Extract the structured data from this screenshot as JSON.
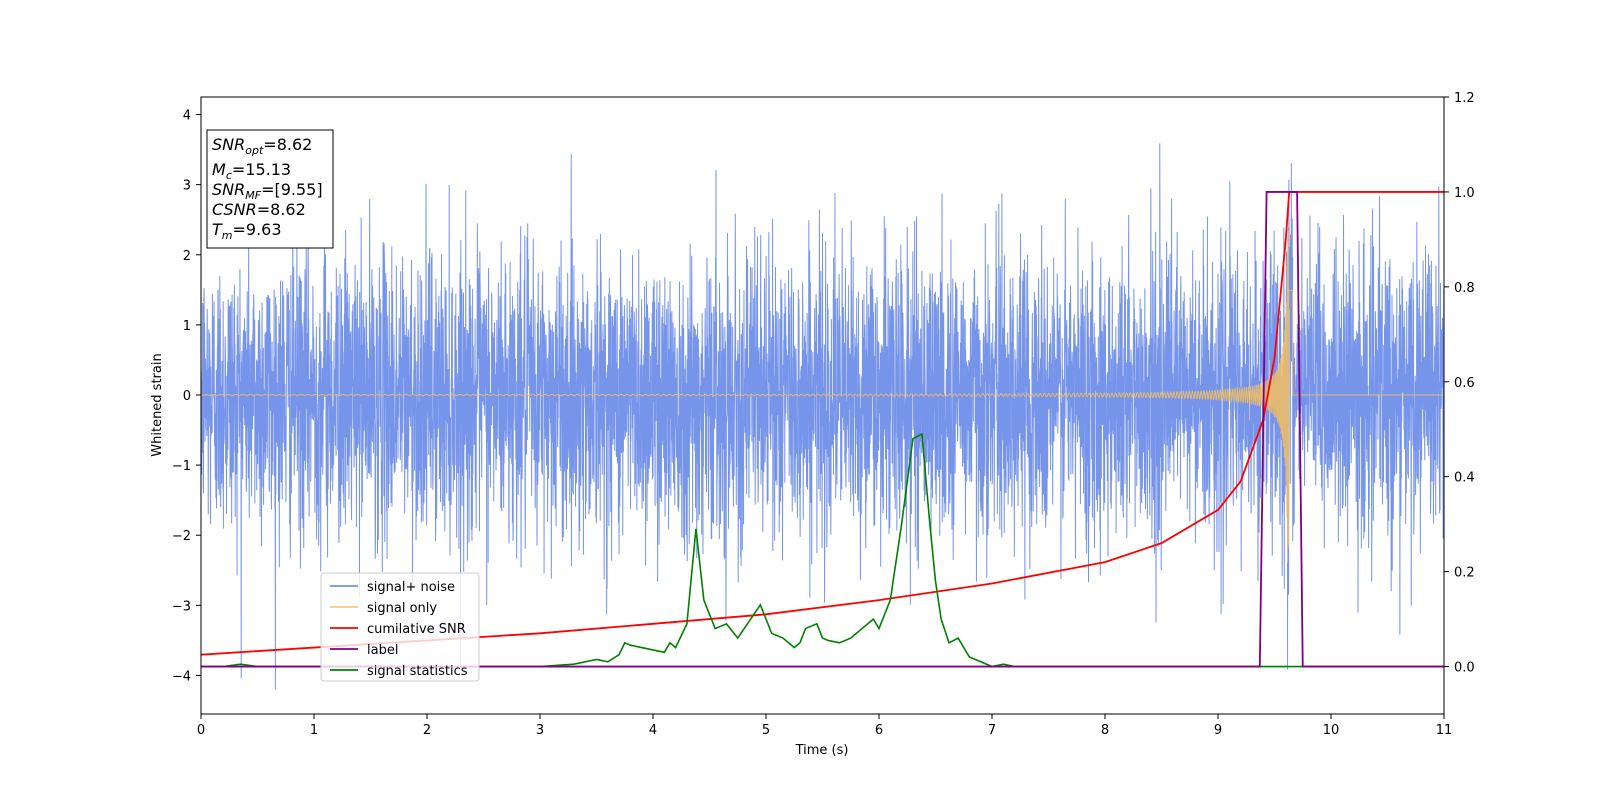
{
  "chart_data": {
    "type": "line",
    "title": "",
    "xlabel": "Time (s)",
    "ylabel": "Whitened strain",
    "y2label": "",
    "xlim": [
      0,
      11
    ],
    "ylim": [
      -4.55,
      4.25
    ],
    "y2lim": [
      -0.1,
      1.2
    ],
    "x_ticks": [
      "0",
      "1",
      "2",
      "3",
      "4",
      "5",
      "6",
      "7",
      "8",
      "9",
      "10",
      "11"
    ],
    "y_ticks": [
      "−4",
      "−3",
      "−2",
      "−1",
      "0",
      "1",
      "2",
      "3",
      "4"
    ],
    "y2_ticks": [
      "0.0",
      "0.2",
      "0.4",
      "0.6",
      "0.8",
      "1.0",
      "1.2"
    ],
    "grid": false,
    "legend_position": "lower-left",
    "colors": {
      "signal_noise": "#6f8ee8",
      "signal_only": "#f5c060",
      "cumulative_snr": "#ff0000",
      "label": "#800080",
      "signal_statistics": "#008000"
    },
    "stats_box": {
      "lines": [
        {
          "main": "SNR",
          "sub": "opt",
          "rest": "=8.62"
        },
        {
          "main": "M",
          "sub": "c",
          "rest": "=15.13"
        },
        {
          "main": "SNR",
          "sub": "MF",
          "rest": "=[9.55]"
        },
        {
          "main": "CSNR",
          "sub": "",
          "rest": "=8.62"
        },
        {
          "main": "T",
          "sub": "m",
          "rest": "=9.63"
        }
      ]
    },
    "series": [
      {
        "name": "signal+ noise",
        "axis": "left",
        "description_kind": "noise",
        "amplitude_std": 1.0
      },
      {
        "name": "signal only",
        "axis": "left",
        "kind": "chirp",
        "merger_time": 9.63,
        "end_time": 9.66
      },
      {
        "name": "cumilative SNR",
        "axis": "right",
        "x": [
          0,
          1,
          2,
          3,
          4,
          5,
          6,
          7,
          8,
          8.5,
          9,
          9.2,
          9.4,
          9.5,
          9.6,
          9.63,
          11
        ],
        "y": [
          0.025,
          0.04,
          0.055,
          0.07,
          0.09,
          0.11,
          0.14,
          0.175,
          0.22,
          0.26,
          0.33,
          0.39,
          0.52,
          0.65,
          0.9,
          1.0,
          1.0
        ]
      },
      {
        "name": "label",
        "axis": "right",
        "x": [
          0,
          9.37,
          9.43,
          9.7,
          9.75,
          11
        ],
        "y": [
          0,
          0,
          1,
          1,
          0,
          0
        ]
      },
      {
        "name": "signal statistics",
        "axis": "right",
        "x": [
          0,
          0.2,
          0.35,
          0.5,
          1,
          2,
          3,
          3.3,
          3.5,
          3.6,
          3.7,
          3.75,
          3.8,
          3.9,
          4.0,
          4.1,
          4.15,
          4.2,
          4.3,
          4.38,
          4.45,
          4.55,
          4.65,
          4.75,
          4.85,
          4.95,
          5.05,
          5.15,
          5.25,
          5.3,
          5.35,
          5.45,
          5.5,
          5.55,
          5.65,
          5.75,
          5.85,
          5.95,
          6.0,
          6.1,
          6.2,
          6.3,
          6.38,
          6.45,
          6.5,
          6.55,
          6.62,
          6.7,
          6.8,
          6.9,
          7.0,
          7.1,
          7.2,
          7.5,
          8.0,
          11
        ],
        "y": [
          0.0,
          0.0,
          0.005,
          0.0,
          0.0,
          0.0,
          0.0,
          0.005,
          0.015,
          0.01,
          0.025,
          0.05,
          0.045,
          0.04,
          0.035,
          0.03,
          0.05,
          0.04,
          0.09,
          0.29,
          0.14,
          0.08,
          0.09,
          0.06,
          0.095,
          0.13,
          0.07,
          0.06,
          0.04,
          0.05,
          0.08,
          0.09,
          0.06,
          0.055,
          0.05,
          0.06,
          0.08,
          0.1,
          0.08,
          0.14,
          0.3,
          0.48,
          0.49,
          0.3,
          0.18,
          0.1,
          0.05,
          0.06,
          0.02,
          0.01,
          0.0,
          0.005,
          0.0,
          0.0,
          0.0,
          0.0
        ]
      }
    ]
  }
}
